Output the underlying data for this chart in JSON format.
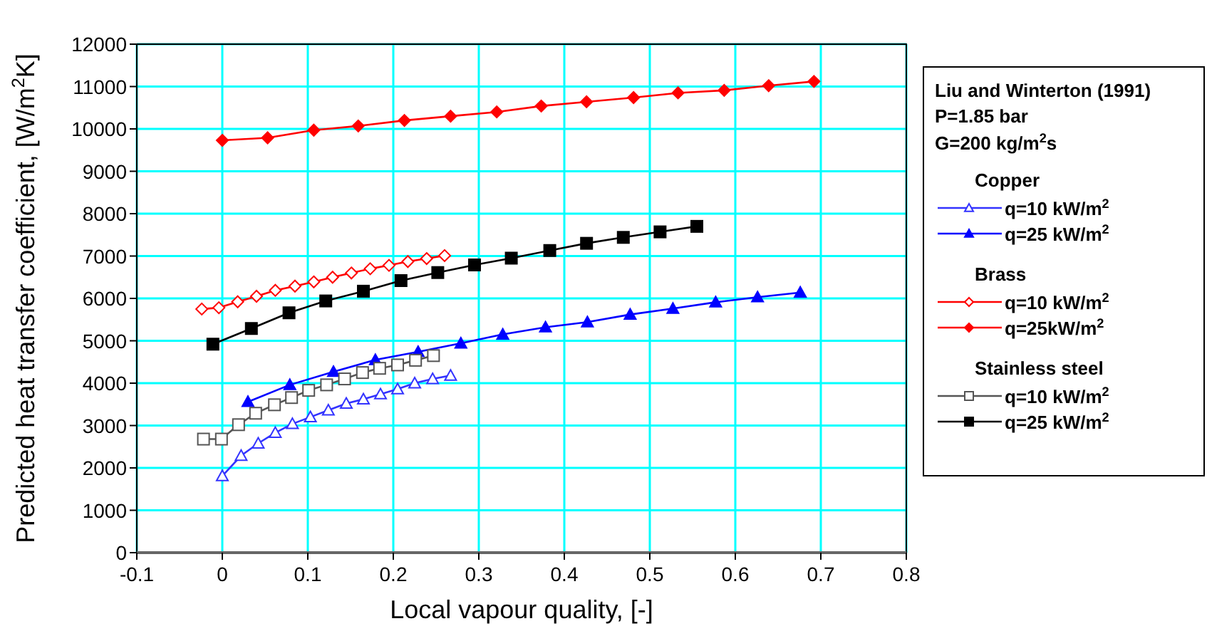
{
  "chart_data": {
    "type": "line",
    "xlabel": "Local vapour quality, [-]",
    "ylabel": "Predicted heat transfer coefficient, [W/m$^{2}$K]",
    "legend_title": "Liu and Winterton (1991)",
    "annotations": [
      "P=1.85 bar",
      "G=200 kg/m$^{2}$s",
      "Copper",
      "Brass",
      "Stainless steel"
    ],
    "xlim": [
      -0.1,
      0.8
    ],
    "xticks": [
      -0.1,
      0,
      0.1,
      0.2,
      0.3,
      0.4,
      0.5,
      0.6,
      0.7,
      0.8
    ],
    "ylim": [
      0,
      12000
    ],
    "yticks": [
      0,
      1000,
      2000,
      3000,
      4000,
      5000,
      6000,
      7000,
      8000,
      9000,
      10000,
      11000,
      12000
    ],
    "grid": true,
    "legend": "right",
    "line_style": "solid",
    "series": [
      {
        "name": "q=10 kW/m$^{2}$",
        "color": "#3333ff",
        "marker": "triangle",
        "x": [
          0.0,
          0.022,
          0.042,
          0.062,
          0.082,
          0.103,
          0.124,
          0.145,
          0.165,
          0.185,
          0.205,
          0.225,
          0.246,
          0.267
        ],
        "values": [
          1810,
          2290,
          2580,
          2830,
          3040,
          3200,
          3360,
          3520,
          3620,
          3740,
          3860,
          4000,
          4100,
          4180
        ]
      },
      {
        "name": "q=25 kW/m$^{2}$",
        "color": "#0000ff",
        "marker": "triangle",
        "x": [
          0.03,
          0.079,
          0.13,
          0.179,
          0.229,
          0.279,
          0.328,
          0.378,
          0.427,
          0.477,
          0.527,
          0.577,
          0.626,
          0.676
        ],
        "values": [
          3560,
          3960,
          4270,
          4550,
          4740,
          4940,
          5150,
          5320,
          5440,
          5620,
          5760,
          5910,
          6030,
          6140
        ]
      },
      {
        "name": "q=10 kW/m$^{2}$",
        "color": "#ff0000",
        "marker": "diamond",
        "x": [
          -0.024,
          -0.004,
          0.018,
          0.04,
          0.062,
          0.085,
          0.107,
          0.129,
          0.151,
          0.173,
          0.195,
          0.217,
          0.239,
          0.26
        ],
        "values": [
          5750,
          5780,
          5920,
          6050,
          6190,
          6290,
          6390,
          6500,
          6600,
          6700,
          6780,
          6870,
          6940,
          7010
        ]
      },
      {
        "name": "q=25kW/m$^{2}$",
        "color": "#ff0000",
        "marker": "diamond",
        "x": [
          0.0,
          0.053,
          0.107,
          0.159,
          0.213,
          0.267,
          0.321,
          0.373,
          0.426,
          0.481,
          0.533,
          0.587,
          0.639,
          0.692
        ],
        "values": [
          9730,
          9790,
          9970,
          10070,
          10200,
          10300,
          10400,
          10540,
          10640,
          10740,
          10850,
          10910,
          11020,
          11120
        ]
      },
      {
        "name": "q=10 kW/m$^{2}$",
        "color": "#555555",
        "marker": "square",
        "x": [
          -0.022,
          -0.001,
          0.019,
          0.039,
          0.061,
          0.081,
          0.101,
          0.122,
          0.143,
          0.164,
          0.184,
          0.205,
          0.226,
          0.247
        ],
        "values": [
          2680,
          2680,
          3020,
          3290,
          3490,
          3660,
          3830,
          3960,
          4100,
          4250,
          4350,
          4430,
          4540,
          4650
        ]
      },
      {
        "name": "q=25 kW/m$^{2}$",
        "color": "#000000",
        "marker": "square",
        "x": [
          -0.011,
          0.034,
          0.078,
          0.121,
          0.165,
          0.209,
          0.252,
          0.295,
          0.338,
          0.383,
          0.426,
          0.469,
          0.512,
          0.555
        ],
        "values": [
          4920,
          5290,
          5660,
          5940,
          6170,
          6420,
          6610,
          6790,
          6950,
          7130,
          7300,
          7440,
          7570,
          7700
        ]
      }
    ]
  }
}
